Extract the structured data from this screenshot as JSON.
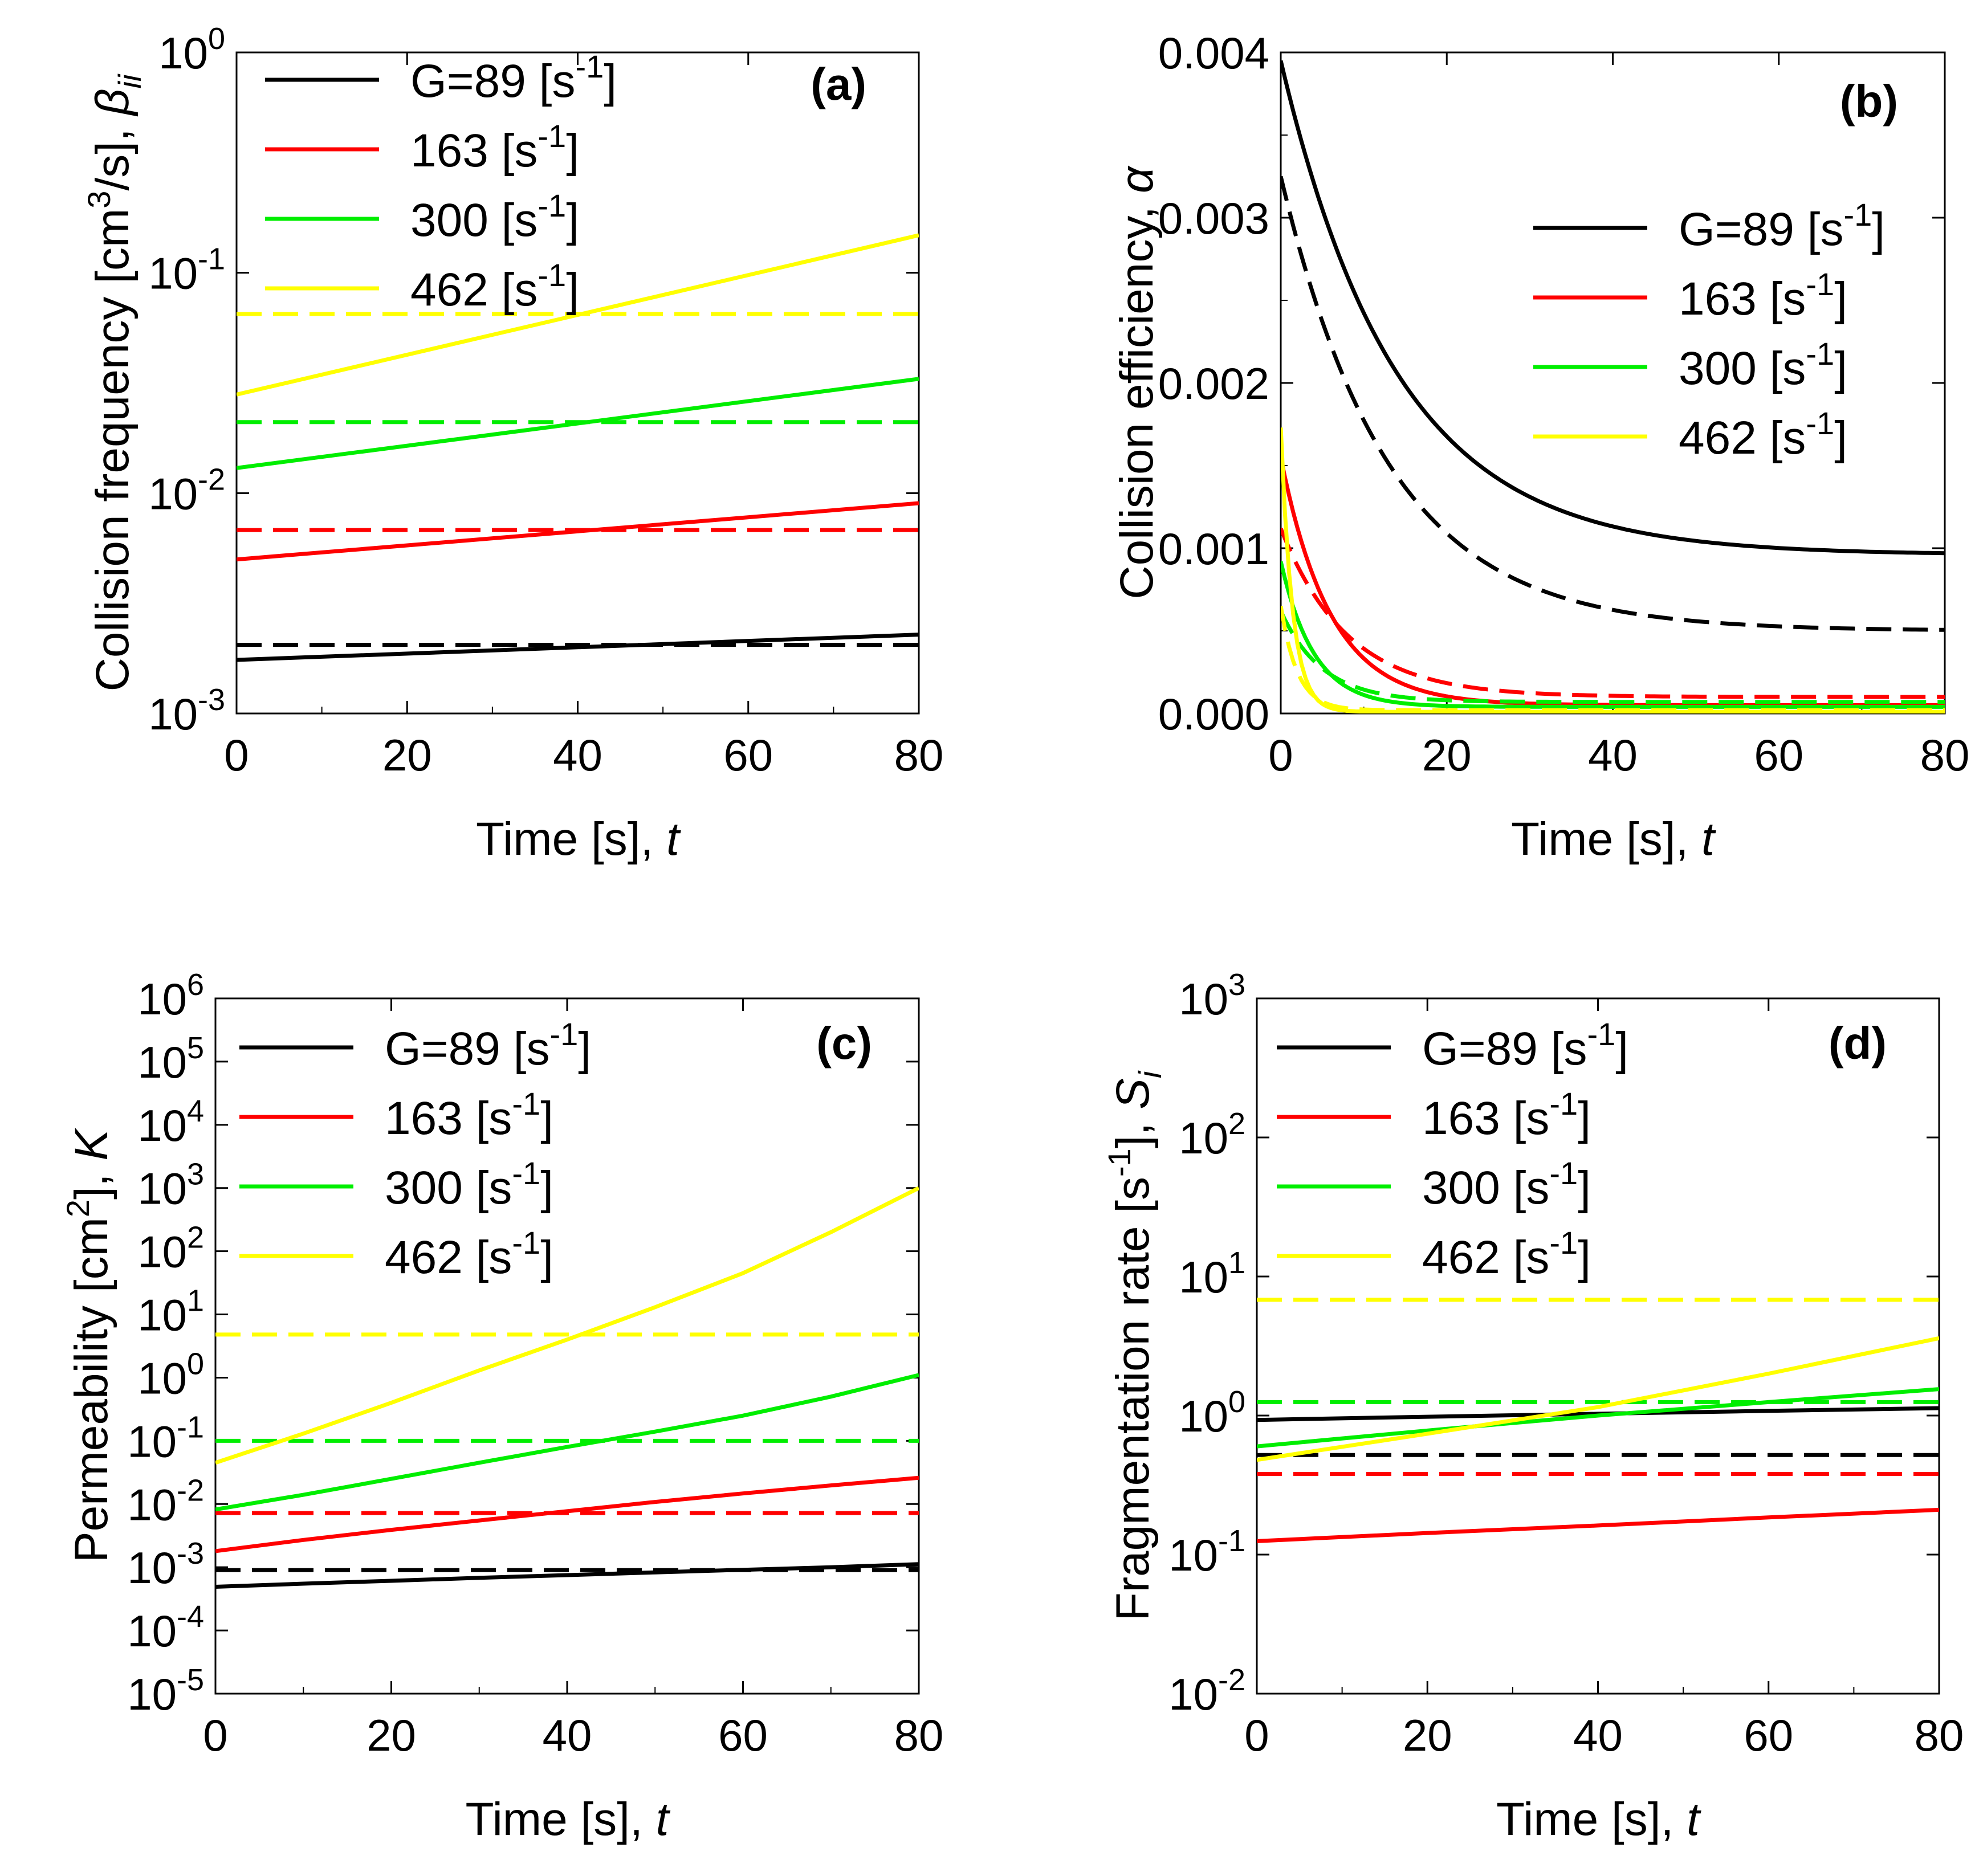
{
  "figure": {
    "legend_labels": [
      {
        "text": "G=89 [s",
        "sup": "-1",
        "end": "]"
      },
      {
        "text": "163 [s",
        "sup": "-1",
        "end": "]"
      },
      {
        "text": "300 [s",
        "sup": "-1",
        "end": "]"
      },
      {
        "text": "462 [s",
        "sup": "-1",
        "end": "]"
      }
    ],
    "series_colors": [
      "#000000",
      "#ff0000",
      "#00ee00",
      "#ffff00"
    ],
    "line_styles": {
      "solid": "solid",
      "dashed": "dashed"
    }
  },
  "chart_data": [
    {
      "panel": "(a)",
      "type": "line",
      "yscale": "log",
      "xlabel": {
        "main": "Time [s], ",
        "var": "t"
      },
      "ylabel": {
        "main": "Collision frequency [cm",
        "sup": "3",
        "after": "/s], ",
        "var": "β",
        "sub": "ii"
      },
      "xlim": [
        0,
        80
      ],
      "ylim": [
        0.001,
        1
      ],
      "xticks": [
        0,
        20,
        40,
        60,
        80
      ],
      "xtick_labels": [
        "0",
        "20",
        "40",
        "60",
        "80"
      ],
      "yticks": [
        0.001,
        0.01,
        0.1,
        1
      ],
      "ytick_labels": [
        {
          "base": "10",
          "exp": "-3"
        },
        {
          "base": "10",
          "exp": "-2"
        },
        {
          "base": "10",
          "exp": "-1"
        },
        {
          "base": "10",
          "exp": "0"
        }
      ],
      "legend_position": "top-left",
      "x": [
        0,
        80
      ],
      "series": [
        {
          "name": "G=89",
          "style": "solid",
          "values": [
            0.00175,
            0.00228
          ]
        },
        {
          "name": "G=89",
          "style": "dashed",
          "values": [
            0.00205,
            0.00205
          ]
        },
        {
          "name": "163",
          "style": "solid",
          "values": [
            0.005,
            0.009
          ]
        },
        {
          "name": "163",
          "style": "dashed",
          "values": [
            0.0068,
            0.0068
          ]
        },
        {
          "name": "300",
          "style": "solid",
          "values": [
            0.013,
            0.033
          ]
        },
        {
          "name": "300",
          "style": "dashed",
          "values": [
            0.021,
            0.021
          ]
        },
        {
          "name": "462",
          "style": "solid",
          "values": [
            0.028,
            0.148
          ]
        },
        {
          "name": "462",
          "style": "dashed",
          "values": [
            0.065,
            0.065
          ]
        }
      ]
    },
    {
      "panel": "(b)",
      "type": "line",
      "yscale": "linear",
      "xlabel": {
        "main": "Time [s], ",
        "var": "t"
      },
      "ylabel": {
        "main": "Collision efficiency, ",
        "var": "α"
      },
      "xlim": [
        0,
        80
      ],
      "ylim": [
        0,
        0.004
      ],
      "xticks": [
        0,
        20,
        40,
        60,
        80
      ],
      "xtick_labels": [
        "0",
        "20",
        "40",
        "60",
        "80"
      ],
      "yticks": [
        0,
        0.001,
        0.002,
        0.003,
        0.004
      ],
      "ytick_labels": [
        "0.000",
        "0.001",
        "0.002",
        "0.003",
        "0.004"
      ],
      "legend_position": "top-right",
      "model": "alpha(t) = final + (initial - final) * exp(-t / tau)",
      "series": [
        {
          "name": "G=89",
          "style": "solid",
          "initial": 0.00395,
          "final": 0.00096,
          "tau": 14
        },
        {
          "name": "G=89",
          "style": "dashed",
          "initial": 0.00325,
          "final": 0.0005,
          "tau": 13
        },
        {
          "name": "163",
          "style": "solid",
          "initial": 0.00155,
          "final": 5e-05,
          "tau": 6
        },
        {
          "name": "163",
          "style": "dashed",
          "initial": 0.00112,
          "final": 0.0001,
          "tau": 8
        },
        {
          "name": "300",
          "style": "solid",
          "initial": 0.00092,
          "final": 4e-05,
          "tau": 4
        },
        {
          "name": "300",
          "style": "dashed",
          "initial": 0.00062,
          "final": 7e-05,
          "tau": 5
        },
        {
          "name": "462",
          "style": "solid",
          "initial": 0.00173,
          "final": 1e-05,
          "tau": 1.4
        },
        {
          "name": "462",
          "style": "dashed",
          "initial": 0.00065,
          "final": 2e-05,
          "tau": 2
        }
      ]
    },
    {
      "panel": "(c)",
      "type": "line",
      "yscale": "log",
      "xlabel": {
        "main": "Time [s], ",
        "var": "t"
      },
      "ylabel": {
        "main": "Permeability [cm",
        "sup": "2",
        "after": "], ",
        "var": "K"
      },
      "xlim": [
        0,
        80
      ],
      "ylim": [
        1e-05,
        1000000
      ],
      "xticks": [
        0,
        20,
        40,
        60,
        80
      ],
      "xtick_labels": [
        "0",
        "20",
        "40",
        "60",
        "80"
      ],
      "yticks": [
        1e-05,
        0.0001,
        0.001,
        0.01,
        0.1,
        1,
        10,
        100,
        1000,
        10000,
        100000,
        1000000
      ],
      "ytick_labels": [
        {
          "base": "10",
          "exp": "-5"
        },
        {
          "base": "10",
          "exp": "-4"
        },
        {
          "base": "10",
          "exp": "-3"
        },
        {
          "base": "10",
          "exp": "-2"
        },
        {
          "base": "10",
          "exp": "-1"
        },
        {
          "base": "10",
          "exp": "0"
        },
        {
          "base": "10",
          "exp": "1"
        },
        {
          "base": "10",
          "exp": "2"
        },
        {
          "base": "10",
          "exp": "3"
        },
        {
          "base": "10",
          "exp": "4"
        },
        {
          "base": "10",
          "exp": "5"
        },
        {
          "base": "10",
          "exp": "6"
        }
      ],
      "legend_position": "top-left",
      "x": [
        0,
        10,
        20,
        30,
        40,
        50,
        60,
        70,
        80
      ],
      "series": [
        {
          "name": "G=89",
          "style": "solid",
          "values": [
            0.00049,
            0.00055,
            0.00061,
            0.00068,
            0.00075,
            0.00083,
            0.00091,
            0.001,
            0.00112
          ]
        },
        {
          "name": "G=89",
          "style": "dashed",
          "values": [
            0.0009,
            0.0009,
            0.0009,
            0.0009,
            0.0009,
            0.0009,
            0.0009,
            0.0009,
            0.0009
          ]
        },
        {
          "name": "163",
          "style": "solid",
          "values": [
            0.0018,
            0.0027,
            0.0039,
            0.0055,
            0.0077,
            0.0108,
            0.0147,
            0.0197,
            0.026
          ]
        },
        {
          "name": "163",
          "style": "dashed",
          "values": [
            0.0072,
            0.0072,
            0.0072,
            0.0072,
            0.0072,
            0.0072,
            0.0072,
            0.0072,
            0.0072
          ]
        },
        {
          "name": "300",
          "style": "solid",
          "values": [
            0.0082,
            0.014,
            0.025,
            0.045,
            0.08,
            0.14,
            0.25,
            0.5,
            1.1
          ]
        },
        {
          "name": "300",
          "style": "dashed",
          "values": [
            0.1,
            0.1,
            0.1,
            0.1,
            0.1,
            0.1,
            0.1,
            0.1,
            0.1
          ]
        },
        {
          "name": "462",
          "style": "solid",
          "values": [
            0.045,
            0.13,
            0.4,
            1.3,
            4.0,
            13,
            45,
            200,
            1000
          ]
        },
        {
          "name": "462",
          "style": "dashed",
          "values": [
            4.8,
            4.8,
            4.8,
            4.8,
            4.8,
            4.8,
            4.8,
            4.8,
            4.8
          ]
        }
      ]
    },
    {
      "panel": "(d)",
      "type": "line",
      "yscale": "log",
      "xlabel": {
        "main": "Time [s], ",
        "var": "t"
      },
      "ylabel": {
        "main": "Fragmentation rate [s",
        "sup": "-1",
        "after": "], ",
        "var": "S",
        "sub": "i"
      },
      "xlim": [
        0,
        80
      ],
      "ylim": [
        0.01,
        1000
      ],
      "xticks": [
        0,
        20,
        40,
        60,
        80
      ],
      "xtick_labels": [
        "0",
        "20",
        "40",
        "60",
        "80"
      ],
      "yticks": [
        0.01,
        0.1,
        1,
        10,
        100,
        1000
      ],
      "ytick_labels": [
        {
          "base": "10",
          "exp": "-2"
        },
        {
          "base": "10",
          "exp": "-1"
        },
        {
          "base": "10",
          "exp": "0"
        },
        {
          "base": "10",
          "exp": "1"
        },
        {
          "base": "10",
          "exp": "2"
        },
        {
          "base": "10",
          "exp": "3"
        }
      ],
      "legend_position": "top-left",
      "x": [
        0,
        20,
        40,
        60,
        80
      ],
      "series": [
        {
          "name": "G=89",
          "style": "solid",
          "values": [
            0.93,
            0.98,
            1.03,
            1.08,
            1.13
          ]
        },
        {
          "name": "G=89",
          "style": "dashed",
          "values": [
            0.52,
            0.52,
            0.52,
            0.52,
            0.52
          ]
        },
        {
          "name": "163",
          "style": "solid",
          "values": [
            0.125,
            0.143,
            0.162,
            0.185,
            0.21
          ]
        },
        {
          "name": "163",
          "style": "dashed",
          "values": [
            0.38,
            0.38,
            0.38,
            0.38,
            0.38
          ]
        },
        {
          "name": "300",
          "style": "solid",
          "values": [
            0.6,
            0.78,
            1.0,
            1.25,
            1.55
          ]
        },
        {
          "name": "300",
          "style": "dashed",
          "values": [
            1.25,
            1.25,
            1.25,
            1.25,
            1.25
          ]
        },
        {
          "name": "462",
          "style": "solid",
          "values": [
            0.48,
            0.74,
            1.15,
            2.0,
            3.6
          ]
        },
        {
          "name": "462",
          "style": "dashed",
          "values": [
            6.8,
            6.8,
            6.8,
            6.8,
            6.8
          ]
        }
      ]
    }
  ]
}
